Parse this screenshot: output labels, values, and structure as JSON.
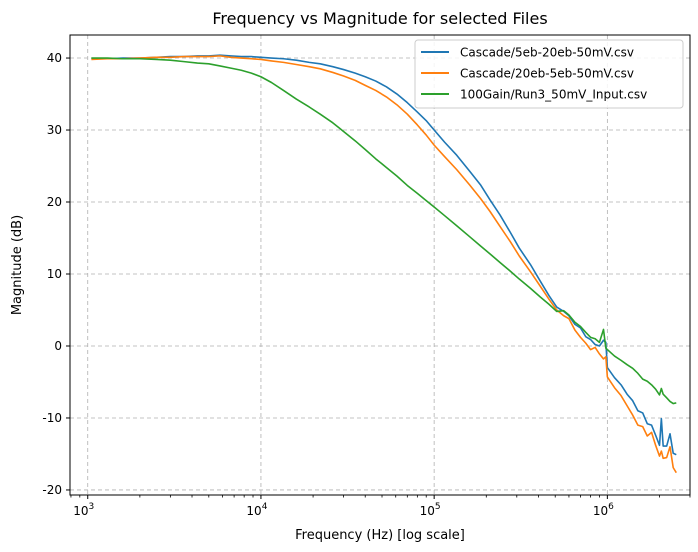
{
  "chart_data": {
    "type": "line",
    "title": "Frequency vs Magnitude for selected Files",
    "xlabel": "Frequency (Hz) [log scale]",
    "ylabel": "Magnitude (dB)",
    "xscale": "log",
    "xlim": [
      790,
      3000000
    ],
    "ylim": [
      -20.7,
      43.2
    ],
    "xticks": [
      {
        "value": 1000,
        "base": "10",
        "exp": "3"
      },
      {
        "value": 10000,
        "base": "10",
        "exp": "4"
      },
      {
        "value": 100000,
        "base": "10",
        "exp": "5"
      },
      {
        "value": 1000000,
        "base": "10",
        "exp": "6"
      }
    ],
    "yticks": [
      40,
      30,
      20,
      10,
      0,
      -10,
      -20
    ],
    "grid": true,
    "legend_position": "top-right",
    "series": [
      {
        "name": "Cascade/5eb-20eb-50mV.csv",
        "color": "#1f77b4",
        "points": [
          [
            1050,
            39.9
          ],
          [
            1300,
            39.9
          ],
          [
            1600,
            40.0
          ],
          [
            2000,
            40.0
          ],
          [
            2500,
            40.1
          ],
          [
            3000,
            40.2
          ],
          [
            3600,
            40.2
          ],
          [
            4300,
            40.3
          ],
          [
            5000,
            40.3
          ],
          [
            5800,
            40.4
          ],
          [
            6700,
            40.3
          ],
          [
            7700,
            40.2
          ],
          [
            8800,
            40.2
          ],
          [
            10000,
            40.1
          ],
          [
            11500,
            40.0
          ],
          [
            13500,
            39.9
          ],
          [
            16000,
            39.7
          ],
          [
            19000,
            39.4
          ],
          [
            22000,
            39.2
          ],
          [
            26000,
            38.8
          ],
          [
            30000,
            38.4
          ],
          [
            35000,
            37.9
          ],
          [
            40000,
            37.4
          ],
          [
            46000,
            36.8
          ],
          [
            53000,
            36.0
          ],
          [
            61000,
            35.0
          ],
          [
            70000,
            33.8
          ],
          [
            80000,
            32.5
          ],
          [
            90000,
            31.3
          ],
          [
            100000,
            30.0
          ],
          [
            115000,
            28.3
          ],
          [
            135000,
            26.5
          ],
          [
            160000,
            24.3
          ],
          [
            185000,
            22.4
          ],
          [
            210000,
            20.3
          ],
          [
            240000,
            18.2
          ],
          [
            275000,
            15.8
          ],
          [
            310000,
            13.6
          ],
          [
            360000,
            11.3
          ],
          [
            410000,
            9.0
          ],
          [
            460000,
            7.0
          ],
          [
            510000,
            5.4
          ],
          [
            560000,
            4.8
          ],
          [
            600000,
            4.2
          ],
          [
            650000,
            3.0
          ],
          [
            700000,
            2.5
          ],
          [
            750000,
            1.3
          ],
          [
            800000,
            0.9
          ],
          [
            850000,
            0.2
          ],
          [
            900000,
            0.0
          ],
          [
            950000,
            0.8
          ],
          [
            980000,
            0.5
          ],
          [
            1000000,
            -3.0
          ],
          [
            1100000,
            -4.4
          ],
          [
            1200000,
            -5.4
          ],
          [
            1300000,
            -6.7
          ],
          [
            1400000,
            -7.6
          ],
          [
            1500000,
            -9.0
          ],
          [
            1600000,
            -9.3
          ],
          [
            1700000,
            -10.8
          ],
          [
            1800000,
            -11.0
          ],
          [
            1900000,
            -12.4
          ],
          [
            2000000,
            -13.8
          ],
          [
            2050000,
            -10.1
          ],
          [
            2100000,
            -13.9
          ],
          [
            2200000,
            -13.9
          ],
          [
            2300000,
            -12.2
          ],
          [
            2400000,
            -14.9
          ],
          [
            2500000,
            -15.1
          ]
        ]
      },
      {
        "name": "Cascade/20eb-5eb-50mV.csv",
        "color": "#ff7f0e",
        "points": [
          [
            1050,
            39.8
          ],
          [
            1300,
            39.9
          ],
          [
            1600,
            39.9
          ],
          [
            2000,
            40.0
          ],
          [
            2500,
            40.1
          ],
          [
            3000,
            40.1
          ],
          [
            3600,
            40.2
          ],
          [
            4300,
            40.2
          ],
          [
            5000,
            40.2
          ],
          [
            5800,
            40.3
          ],
          [
            6700,
            40.1
          ],
          [
            7700,
            40.0
          ],
          [
            8800,
            39.9
          ],
          [
            10000,
            39.8
          ],
          [
            11500,
            39.6
          ],
          [
            13500,
            39.4
          ],
          [
            16000,
            39.1
          ],
          [
            19000,
            38.8
          ],
          [
            22000,
            38.5
          ],
          [
            26000,
            38.0
          ],
          [
            30000,
            37.5
          ],
          [
            35000,
            36.9
          ],
          [
            40000,
            36.2
          ],
          [
            46000,
            35.5
          ],
          [
            53000,
            34.6
          ],
          [
            61000,
            33.5
          ],
          [
            70000,
            32.2
          ],
          [
            80000,
            30.7
          ],
          [
            90000,
            29.3
          ],
          [
            100000,
            27.9
          ],
          [
            115000,
            26.3
          ],
          [
            135000,
            24.5
          ],
          [
            160000,
            22.4
          ],
          [
            185000,
            20.5
          ],
          [
            210000,
            18.7
          ],
          [
            240000,
            16.6
          ],
          [
            275000,
            14.5
          ],
          [
            310000,
            12.5
          ],
          [
            360000,
            10.3
          ],
          [
            410000,
            8.3
          ],
          [
            460000,
            6.5
          ],
          [
            510000,
            5.0
          ],
          [
            560000,
            4.2
          ],
          [
            600000,
            3.8
          ],
          [
            650000,
            2.2
          ],
          [
            700000,
            1.2
          ],
          [
            750000,
            0.4
          ],
          [
            800000,
            -0.5
          ],
          [
            850000,
            -0.2
          ],
          [
            900000,
            -1.1
          ],
          [
            950000,
            -1.8
          ],
          [
            980000,
            -1.5
          ],
          [
            1000000,
            -4.3
          ],
          [
            1100000,
            -5.8
          ],
          [
            1200000,
            -6.9
          ],
          [
            1300000,
            -8.3
          ],
          [
            1400000,
            -9.6
          ],
          [
            1500000,
            -11.0
          ],
          [
            1600000,
            -11.2
          ],
          [
            1700000,
            -12.5
          ],
          [
            1800000,
            -12.0
          ],
          [
            1900000,
            -13.8
          ],
          [
            2000000,
            -15.3
          ],
          [
            2050000,
            -14.6
          ],
          [
            2100000,
            -15.6
          ],
          [
            2200000,
            -15.5
          ],
          [
            2300000,
            -14.0
          ],
          [
            2400000,
            -16.9
          ],
          [
            2500000,
            -17.6
          ]
        ]
      },
      {
        "name": "100Gain/Run3_50mV_Input.csv",
        "color": "#2ca02c",
        "points": [
          [
            1050,
            40.0
          ],
          [
            1300,
            40.0
          ],
          [
            1600,
            39.9
          ],
          [
            2000,
            39.9
          ],
          [
            2500,
            39.8
          ],
          [
            3000,
            39.7
          ],
          [
            3600,
            39.5
          ],
          [
            4300,
            39.3
          ],
          [
            5000,
            39.2
          ],
          [
            5800,
            38.9
          ],
          [
            6700,
            38.6
          ],
          [
            7700,
            38.3
          ],
          [
            8800,
            37.9
          ],
          [
            10000,
            37.4
          ],
          [
            11500,
            36.6
          ],
          [
            13500,
            35.5
          ],
          [
            16000,
            34.3
          ],
          [
            19000,
            33.2
          ],
          [
            22000,
            32.2
          ],
          [
            26000,
            31.0
          ],
          [
            30000,
            29.8
          ],
          [
            35000,
            28.5
          ],
          [
            40000,
            27.3
          ],
          [
            46000,
            26.0
          ],
          [
            53000,
            24.8
          ],
          [
            61000,
            23.6
          ],
          [
            70000,
            22.3
          ],
          [
            80000,
            21.2
          ],
          [
            90000,
            20.2
          ],
          [
            100000,
            19.3
          ],
          [
            115000,
            18.1
          ],
          [
            135000,
            16.7
          ],
          [
            160000,
            15.2
          ],
          [
            185000,
            13.9
          ],
          [
            210000,
            12.8
          ],
          [
            240000,
            11.6
          ],
          [
            275000,
            10.4
          ],
          [
            310000,
            9.3
          ],
          [
            360000,
            8.0
          ],
          [
            410000,
            6.8
          ],
          [
            460000,
            5.8
          ],
          [
            510000,
            4.8
          ],
          [
            560000,
            4.9
          ],
          [
            600000,
            4.3
          ],
          [
            650000,
            3.3
          ],
          [
            700000,
            2.7
          ],
          [
            750000,
            1.9
          ],
          [
            800000,
            1.2
          ],
          [
            850000,
            1.0
          ],
          [
            900000,
            0.5
          ],
          [
            950000,
            2.3
          ],
          [
            980000,
            -0.3
          ],
          [
            1000000,
            -0.5
          ],
          [
            1100000,
            -1.4
          ],
          [
            1200000,
            -2.0
          ],
          [
            1300000,
            -2.6
          ],
          [
            1400000,
            -3.1
          ],
          [
            1500000,
            -3.8
          ],
          [
            1600000,
            -4.6
          ],
          [
            1700000,
            -4.9
          ],
          [
            1800000,
            -5.4
          ],
          [
            1900000,
            -6.0
          ],
          [
            2000000,
            -6.8
          ],
          [
            2050000,
            -5.9
          ],
          [
            2100000,
            -6.7
          ],
          [
            2200000,
            -7.2
          ],
          [
            2300000,
            -7.7
          ],
          [
            2400000,
            -8.0
          ],
          [
            2500000,
            -7.9
          ]
        ]
      }
    ]
  }
}
